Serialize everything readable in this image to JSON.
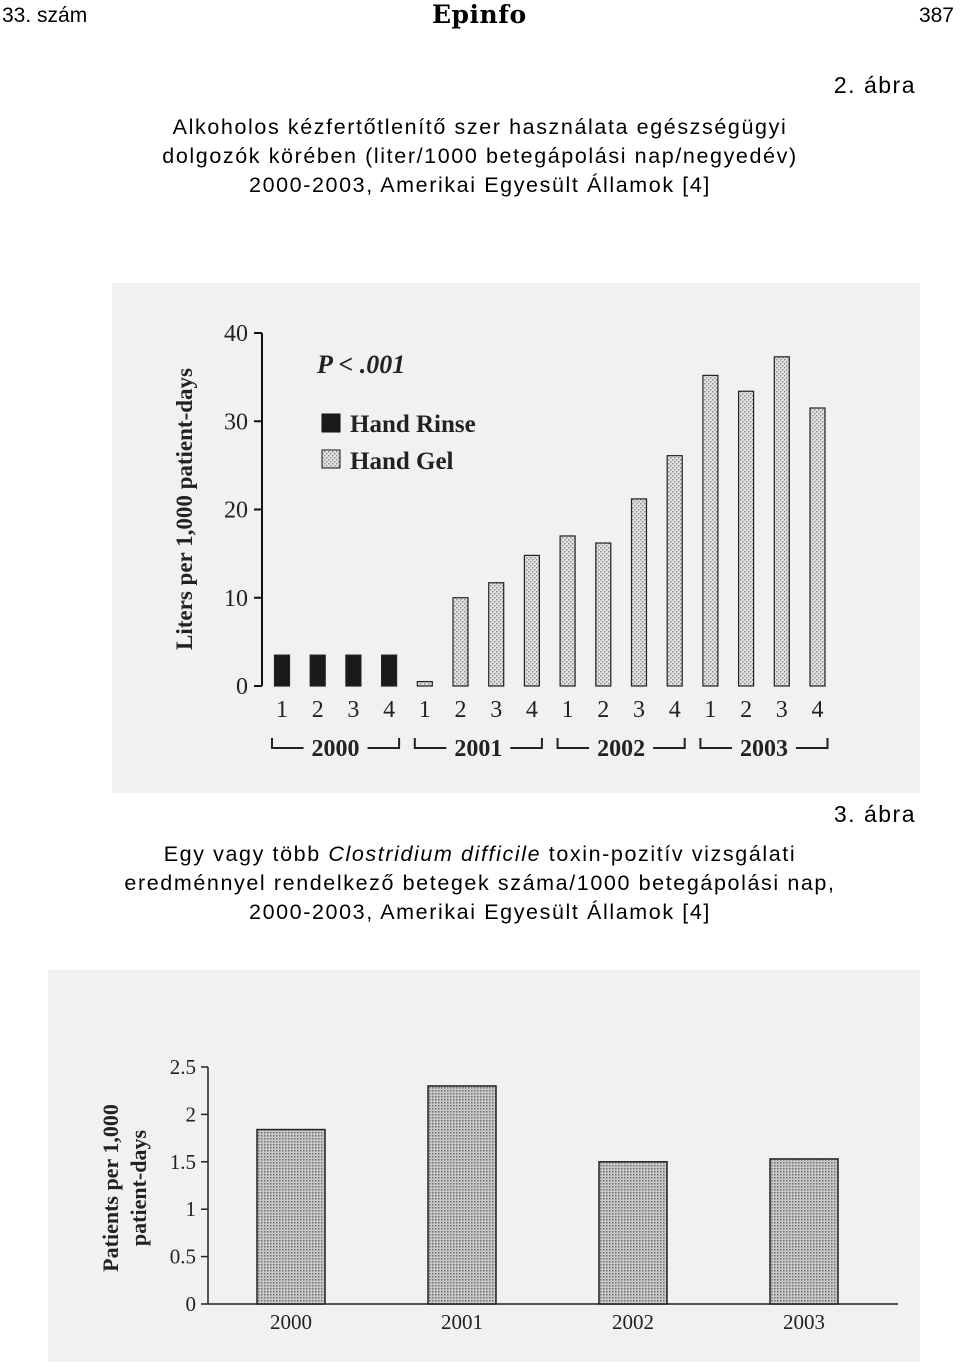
{
  "header": {
    "issue": "33. szám",
    "logo": "Epinfo",
    "page_number": "387"
  },
  "figure2": {
    "label": "2. ábra",
    "caption_lines": [
      "Alkoholos kézfertőtlenítő szer használata egészségügyi",
      "dolgozók körében (liter/1000 betegápolási nap/negyedév)",
      "2000-2003, Amerikai Egyesült Államok [4]"
    ]
  },
  "figure3": {
    "label": "3. ábra",
    "caption_line1_pre": "Egy vagy több ",
    "caption_line1_italic": "Clostridium difficile",
    "caption_line1_post": " toxin-pozitív vizsgálati",
    "caption_line2": "eredménnyel rendelkező betegek száma/1000 betegápolási nap,",
    "caption_line3": "2000-2003, Amerikai Egyesült Államok [4]"
  },
  "chart_data": [
    {
      "type": "bar",
      "ylabel": "Liters per 1,000 patient-days",
      "ylim": [
        0,
        40
      ],
      "yticks": [
        "0",
        "10",
        "20",
        "30",
        "40"
      ],
      "annotation": "P < .001",
      "legend": [
        "Hand Rinse",
        "Hand Gel"
      ],
      "legend_position": "top-left",
      "colors": {
        "Hand Rinse": "#1a1a1a",
        "Hand Gel": "#d6d6d6"
      },
      "quarters": [
        "1",
        "2",
        "3",
        "4",
        "1",
        "2",
        "3",
        "4",
        "1",
        "2",
        "3",
        "4",
        "1",
        "2",
        "3",
        "4"
      ],
      "years": [
        "2000",
        "2001",
        "2002",
        "2003"
      ],
      "bars": [
        {
          "series": "Hand Rinse",
          "value": 3.5
        },
        {
          "series": "Hand Rinse",
          "value": 3.5
        },
        {
          "series": "Hand Rinse",
          "value": 3.5
        },
        {
          "series": "Hand Rinse",
          "value": 3.5
        },
        {
          "series": "Hand Gel",
          "value": 0.5
        },
        {
          "series": "Hand Gel",
          "value": 10
        },
        {
          "series": "Hand Gel",
          "value": 11.7
        },
        {
          "series": "Hand Gel",
          "value": 14.8
        },
        {
          "series": "Hand Gel",
          "value": 17
        },
        {
          "series": "Hand Gel",
          "value": 16.2
        },
        {
          "series": "Hand Gel",
          "value": 21.2
        },
        {
          "series": "Hand Gel",
          "value": 26.1
        },
        {
          "series": "Hand Gel",
          "value": 35.2
        },
        {
          "series": "Hand Gel",
          "value": 33.4
        },
        {
          "series": "Hand Gel",
          "value": 37.3
        },
        {
          "series": "Hand Gel",
          "value": 31.5
        }
      ]
    },
    {
      "type": "bar",
      "ylabel_lines": [
        "Patients per 1,000",
        "patient-days"
      ],
      "ylim": [
        0,
        2.5
      ],
      "yticks": [
        "0",
        "0.5",
        "1",
        "1.5",
        "2",
        "2.5"
      ],
      "categories": [
        "2000",
        "2001",
        "2002",
        "2003"
      ],
      "values": [
        1.84,
        2.3,
        1.5,
        1.53
      ],
      "bar_color": "#b8b8b8"
    }
  ]
}
